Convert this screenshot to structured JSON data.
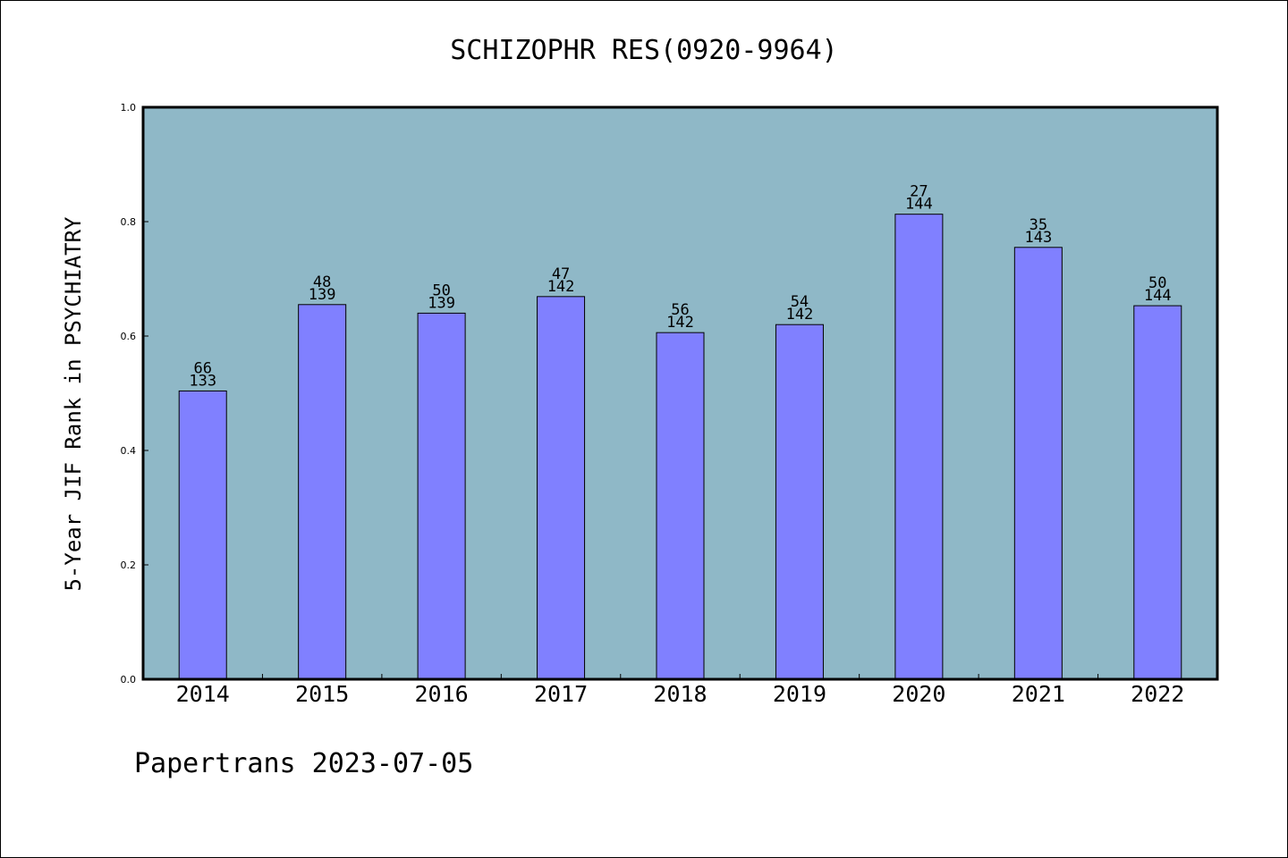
{
  "chart_data": {
    "type": "bar",
    "title": "SCHIZOPHR RES(0920-9964)",
    "xlabel": "",
    "ylabel": "5-Year JIF Rank in PSYCHIATRY",
    "categories": [
      "2014",
      "2015",
      "2016",
      "2017",
      "2018",
      "2019",
      "2020",
      "2021",
      "2022"
    ],
    "values": [
      0.504,
      0.655,
      0.64,
      0.669,
      0.606,
      0.62,
      0.813,
      0.755,
      0.653
    ],
    "ranks": [
      "66",
      "48",
      "50",
      "47",
      "56",
      "54",
      "27",
      "35",
      "50"
    ],
    "totals": [
      "133",
      "139",
      "139",
      "142",
      "142",
      "142",
      "144",
      "143",
      "144"
    ],
    "ylim": [
      0,
      1.0
    ],
    "yticks": [
      "0.0",
      "0.2",
      "0.4",
      "0.6",
      "0.8",
      "1.0"
    ],
    "grid": false,
    "colors": {
      "plot_bg": "#8fb8c7",
      "bar_fill": "#8080ff",
      "bar_stroke": "#000000"
    }
  },
  "footer": {
    "text": "Papertrans 2023-07-05"
  }
}
